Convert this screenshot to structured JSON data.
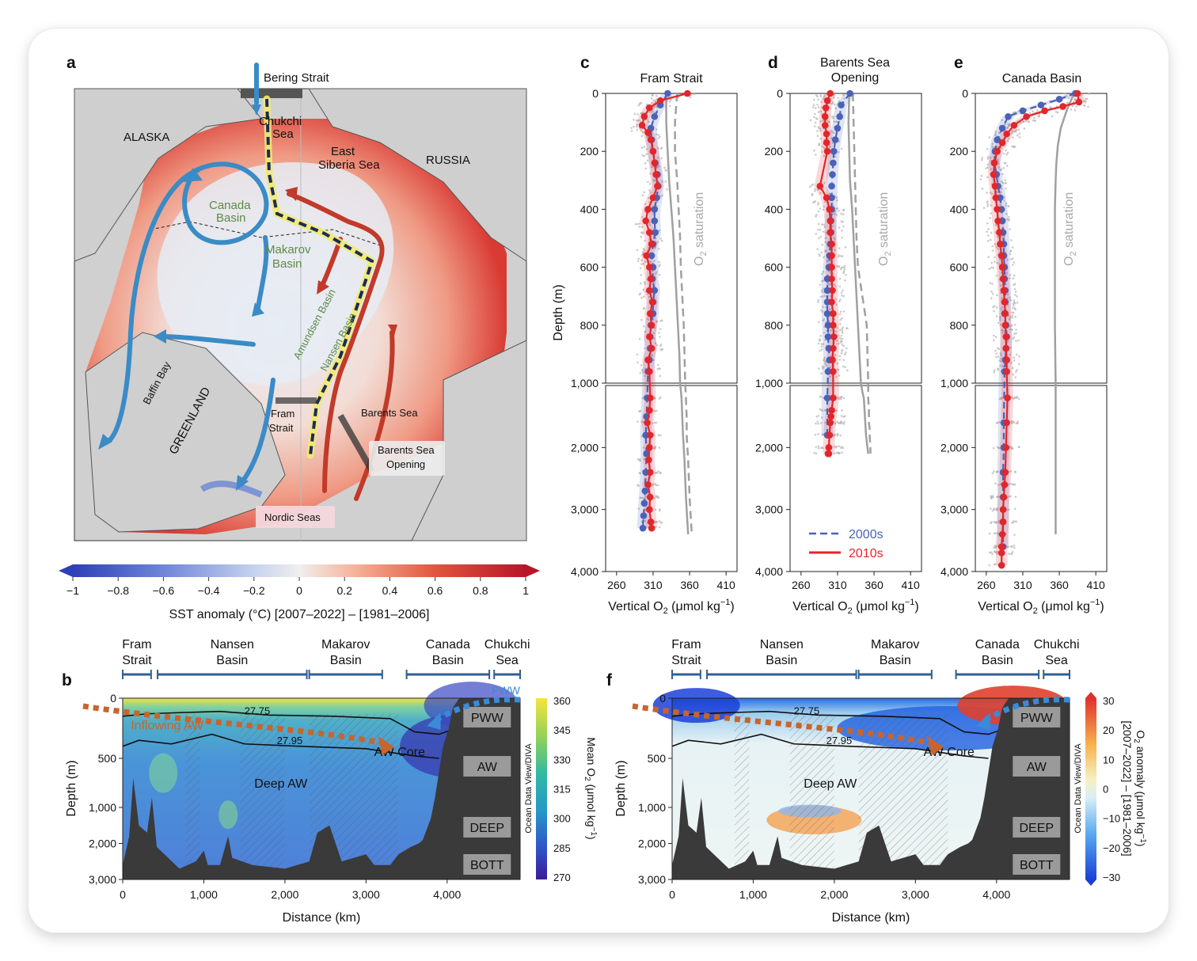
{
  "panel_letters": {
    "a": "a",
    "b": "b",
    "c": "c",
    "d": "d",
    "e": "e",
    "f": "f"
  },
  "map": {
    "region_labels": {
      "bering_strait": "Bering Strait",
      "alaska": "ALASKA",
      "russia": "RUSSIA",
      "chukchi1": "Chukchi",
      "chukchi2": "Sea",
      "east_sib1": "East",
      "east_sib2": "Siberia Sea",
      "canada1": "Canada",
      "canada2": "Basin",
      "makarov1": "Makarov",
      "makarov2": "Basin",
      "amundsen": "Amundsen Basin",
      "nansen": "Nansen Basin",
      "baffin": "Baffin Bay",
      "greenland": "GREENLAND",
      "fram1": "Fram",
      "fram2": "Strait",
      "barents": "Barents Sea",
      "bso1": "Barents Sea",
      "bso2": "Opening",
      "nordic": "Nordic Seas"
    },
    "colorbar": {
      "ticks": [
        "−1",
        "−0.8",
        "−0.6",
        "−0.4",
        "−0.2",
        "0",
        "0.2",
        "0.4",
        "0.6",
        "0.8",
        "1"
      ],
      "label": "SST anomaly (°C)  [2007–2022] – [1981–2006]",
      "colors": [
        "#2f3fb7",
        "#6f86d8",
        "#c5d2ee",
        "#f0eeee",
        "#f5b49b",
        "#e2553e",
        "#b8142a"
      ]
    }
  },
  "profiles": {
    "xlabel": "Vertical O",
    "xlabel_sub": "2",
    "xlabel_unit": " (μmol kg",
    "xlabel_sup": "−1",
    "xlabel_end": ")",
    "ylabel": "Depth (m)",
    "sat_label": "O",
    "sat_sub": "2",
    "sat_label2": " saturation",
    "xticks": [
      "260",
      "310",
      "360",
      "410"
    ],
    "yticks_top": [
      "0",
      "200",
      "400",
      "600",
      "800",
      "1,000"
    ],
    "yticks_bottom": [
      "2,000",
      "3,000",
      "4,000"
    ],
    "legend": {
      "s2000": "2000s",
      "s2010": "2010s"
    },
    "colors": {
      "s2000": "#4a62b8",
      "s2010": "#e2262b",
      "sat": "#a0a0a0"
    },
    "titles": {
      "c": "Fram Strait",
      "d1": "Barents Sea",
      "d2": "Opening",
      "e": "Canada Basin"
    }
  },
  "chart_data": [
    {
      "type": "line",
      "panel": "c",
      "title": "Fram Strait",
      "xlabel": "Vertical O2 (μmol kg−1)",
      "ylabel": "Depth (m)",
      "xlim": [
        245,
        425
      ],
      "ylim": [
        4000,
        0
      ],
      "y_break": 1000,
      "series": [
        {
          "name": "2000s",
          "x": [
            330,
            320,
            312,
            307,
            308,
            310,
            313,
            316,
            317,
            315,
            312,
            312,
            313,
            310,
            308,
            310,
            309,
            312,
            310,
            310,
            307,
            306,
            306,
            305,
            303,
            302,
            301,
            300,
            301,
            300,
            299,
            298,
            297,
            296
          ],
          "y": [
            0,
            40,
            80,
            120,
            160,
            200,
            240,
            280,
            320,
            360,
            400,
            440,
            480,
            520,
            560,
            600,
            640,
            680,
            720,
            760,
            800,
            840,
            880,
            920,
            960,
            1200,
            1500,
            1800,
            2100,
            2400,
            2700,
            2900,
            3100,
            3300
          ]
        },
        {
          "name": "2010s",
          "x": [
            357,
            320,
            305,
            298,
            295,
            303,
            307,
            310,
            312,
            314,
            316,
            310,
            303,
            300,
            305,
            308,
            301,
            305,
            307,
            305,
            309,
            306,
            308,
            305,
            308,
            303,
            305,
            306,
            305,
            302,
            306,
            305,
            304,
            306,
            303,
            306,
            305,
            307,
            308
          ],
          "y": [
            0,
            25,
            50,
            80,
            110,
            135,
            160,
            200,
            240,
            280,
            320,
            360,
            400,
            440,
            480,
            520,
            560,
            600,
            640,
            680,
            720,
            760,
            800,
            840,
            880,
            920,
            960,
            1200,
            1400,
            1600,
            1800,
            2000,
            2200,
            2400,
            2600,
            2800,
            3000,
            3200,
            3300
          ]
        },
        {
          "name": "O2 saturation 2000s",
          "x": [
            343,
            340,
            340,
            343,
            345,
            347,
            348,
            350,
            352,
            353,
            354,
            355,
            356,
            356,
            357,
            358,
            359,
            360,
            361,
            362,
            363
          ],
          "y": [
            0,
            100,
            200,
            300,
            400,
            500,
            600,
            700,
            800,
            900,
            1000,
            1200,
            1500,
            1800,
            2000,
            2200,
            2500,
            2800,
            3000,
            3200,
            3400
          ]
        },
        {
          "name": "O2 saturation 2010s",
          "x": [
            328,
            328,
            330,
            332,
            335,
            338,
            340,
            342,
            344,
            346,
            347,
            349,
            350,
            351,
            352,
            353,
            354,
            355,
            356,
            357,
            358
          ],
          "y": [
            0,
            100,
            200,
            300,
            400,
            500,
            600,
            700,
            800,
            900,
            1000,
            1200,
            1500,
            1800,
            2000,
            2200,
            2500,
            2800,
            3000,
            3200,
            3400
          ]
        }
      ]
    },
    {
      "type": "line",
      "panel": "d",
      "title": "Barents Sea Opening",
      "xlabel": "Vertical O2 (μmol kg−1)",
      "ylabel": "Depth (m)",
      "xlim": [
        245,
        425
      ],
      "ylim": [
        4000,
        0
      ],
      "y_break": 1000,
      "series": [
        {
          "name": "2000s",
          "x": [
            327,
            315,
            313,
            310,
            307,
            305,
            304,
            303,
            302,
            302,
            302,
            301,
            301,
            300,
            299,
            298,
            296,
            296,
            296,
            296,
            297,
            297,
            298,
            299,
            297,
            296,
            296
          ],
          "y": [
            0,
            40,
            80,
            120,
            160,
            200,
            240,
            280,
            320,
            360,
            400,
            440,
            480,
            520,
            560,
            600,
            640,
            680,
            720,
            760,
            800,
            840,
            880,
            920,
            960,
            1200,
            1800
          ]
        },
        {
          "name": "2010s",
          "x": [
            300,
            296,
            294,
            293,
            293,
            295,
            295,
            296,
            286,
            295,
            299,
            300,
            300,
            302,
            302,
            302,
            302,
            303,
            302,
            304,
            304,
            305,
            304,
            303,
            304,
            304,
            302,
            301,
            300,
            299,
            298,
            298,
            297
          ],
          "y": [
            0,
            25,
            50,
            80,
            110,
            140,
            170,
            200,
            320,
            360,
            400,
            440,
            480,
            520,
            560,
            600,
            640,
            680,
            720,
            760,
            800,
            840,
            880,
            920,
            960,
            1200,
            1400,
            1500,
            1600,
            1800,
            2000,
            2100,
            2100
          ]
        },
        {
          "name": "O2 saturation 2000s",
          "x": [
            331,
            332,
            333,
            334,
            335,
            336,
            338,
            341,
            344,
            347,
            350,
            351,
            352,
            352,
            353,
            353,
            354,
            354,
            355,
            355
          ],
          "y": [
            0,
            100,
            200,
            300,
            400,
            500,
            600,
            650,
            700,
            750,
            800,
            900,
            1000,
            1200,
            1400,
            1600,
            1700,
            1800,
            2000,
            2100
          ]
        },
        {
          "name": "O2 saturation 2010s",
          "x": [
            326,
            325,
            326,
            327,
            330,
            332,
            334,
            336,
            338,
            340,
            342,
            344,
            346,
            347,
            348,
            349,
            350,
            351,
            352
          ],
          "y": [
            0,
            100,
            200,
            300,
            400,
            500,
            600,
            700,
            800,
            900,
            1000,
            1100,
            1200,
            1400,
            1600,
            1800,
            1900,
            2000,
            2100
          ]
        }
      ]
    },
    {
      "type": "line",
      "panel": "e",
      "title": "Canada Basin",
      "xlabel": "Vertical O2 (μmol kg−1)",
      "ylabel": "Depth (m)",
      "xlim": [
        245,
        425
      ],
      "ylim": [
        4000,
        0
      ],
      "y_break": 1000,
      "series": [
        {
          "name": "2000s",
          "x": [
            382,
            360,
            335,
            310,
            290,
            282,
            275,
            272,
            271,
            274,
            276,
            279,
            281,
            282,
            283,
            284,
            284,
            285,
            285,
            286,
            286,
            285,
            287,
            288,
            287,
            286,
            285,
            284,
            284,
            283,
            283,
            283,
            283
          ],
          "y": [
            0,
            20,
            40,
            60,
            80,
            120,
            160,
            200,
            240,
            280,
            320,
            360,
            400,
            440,
            480,
            520,
            560,
            600,
            640,
            680,
            720,
            760,
            800,
            840,
            880,
            920,
            960,
            1600,
            2000,
            2400,
            2800,
            3200,
            3600
          ]
        },
        {
          "name": "2010s",
          "x": [
            385,
            387,
            365,
            340,
            315,
            298,
            288,
            282,
            275,
            271,
            270,
            272,
            273,
            275,
            276,
            278,
            279,
            281,
            282,
            283,
            284,
            285,
            286,
            286,
            287,
            287,
            288,
            288,
            289,
            288,
            287,
            286,
            285,
            284,
            283,
            283,
            282,
            281,
            281,
            281
          ],
          "y": [
            0,
            30,
            45,
            60,
            80,
            110,
            140,
            170,
            200,
            240,
            280,
            320,
            360,
            400,
            440,
            480,
            520,
            560,
            600,
            640,
            680,
            720,
            760,
            800,
            840,
            880,
            920,
            960,
            1200,
            1600,
            2000,
            2400,
            2600,
            2800,
            3000,
            3200,
            3400,
            3600,
            3700,
            3900
          ]
        },
        {
          "name": "O2 saturation",
          "x": [
            380,
            370,
            362,
            358,
            356,
            355,
            354,
            354,
            354,
            354,
            355,
            355,
            355,
            355,
            355,
            355,
            355
          ],
          "y": [
            0,
            60,
            120,
            180,
            240,
            300,
            400,
            500,
            600,
            800,
            1000,
            1400,
            1800,
            2200,
            2600,
            3000,
            3400
          ]
        }
      ]
    },
    {
      "type": "heatmap",
      "panel": "b",
      "xlabel": "Distance (km)",
      "ylabel": "Depth (m)",
      "xlim": [
        0,
        4900
      ],
      "ylim": [
        3000,
        0
      ],
      "colorbar_label": "Mean O2 (μmol kg−1)",
      "colorbar_ticks": [
        360,
        345,
        330,
        315,
        300,
        285,
        270
      ],
      "isopycnals": [
        "27.75",
        "27.95"
      ]
    },
    {
      "type": "heatmap",
      "panel": "f",
      "xlabel": "Distance (km)",
      "ylabel": "Depth (m)",
      "xlim": [
        0,
        4900
      ],
      "ylim": [
        3000,
        0
      ],
      "colorbar_label": "O2 anomaly (μmol kg−1) [2007–2022] – [1981–2006]",
      "colorbar_ticks": [
        30,
        20,
        10,
        0,
        -10,
        -20,
        -30
      ],
      "isopycnals": [
        "27.75",
        "27.95"
      ]
    }
  ],
  "sections": {
    "regions": [
      {
        "l1": "Fram",
        "l2": "Strait"
      },
      {
        "l1": "Nansen",
        "l2": "Basin"
      },
      {
        "l1": "Makarov",
        "l2": "Basin"
      },
      {
        "l1": "Canada",
        "l2": "Basin"
      },
      {
        "l1": "Chukchi",
        "l2": "Sea"
      }
    ],
    "xticks": [
      "0",
      "1,000",
      "2,000",
      "3,000",
      "4,000"
    ],
    "yticks": [
      "0",
      "500",
      "1,000",
      "2,000",
      "3,000"
    ],
    "xlabel": "Distance (km)",
    "ylabel": "Depth (m)",
    "boxes": [
      "PWW",
      "AW",
      "DEEP",
      "BOTT"
    ],
    "iso1": "27.75",
    "iso2": "27.95",
    "aw_core": "AW Core",
    "deep_aw": "Deep AW",
    "inflowing_aw": "Inflowing AW",
    "pww_top": "PWW",
    "odv": "Ocean Data View/DIVA",
    "b_cb": {
      "ticks": [
        "360",
        "345",
        "330",
        "315",
        "300",
        "285",
        "270"
      ],
      "label1": "Mean O",
      "label_sub": "2",
      "label2": " (μmol kg",
      "label_sup": "−1",
      "label3": ")"
    },
    "f_cb": {
      "ticks": [
        "30",
        "20",
        "10",
        "0",
        "−10",
        "−20",
        "−30"
      ],
      "label1": "O",
      "label_sub": "2",
      "label2": " anomaly (μmol kg",
      "label_sup": "−1",
      "label3": ")",
      "label4": "[2007–2022] – [1981–2006]"
    }
  }
}
